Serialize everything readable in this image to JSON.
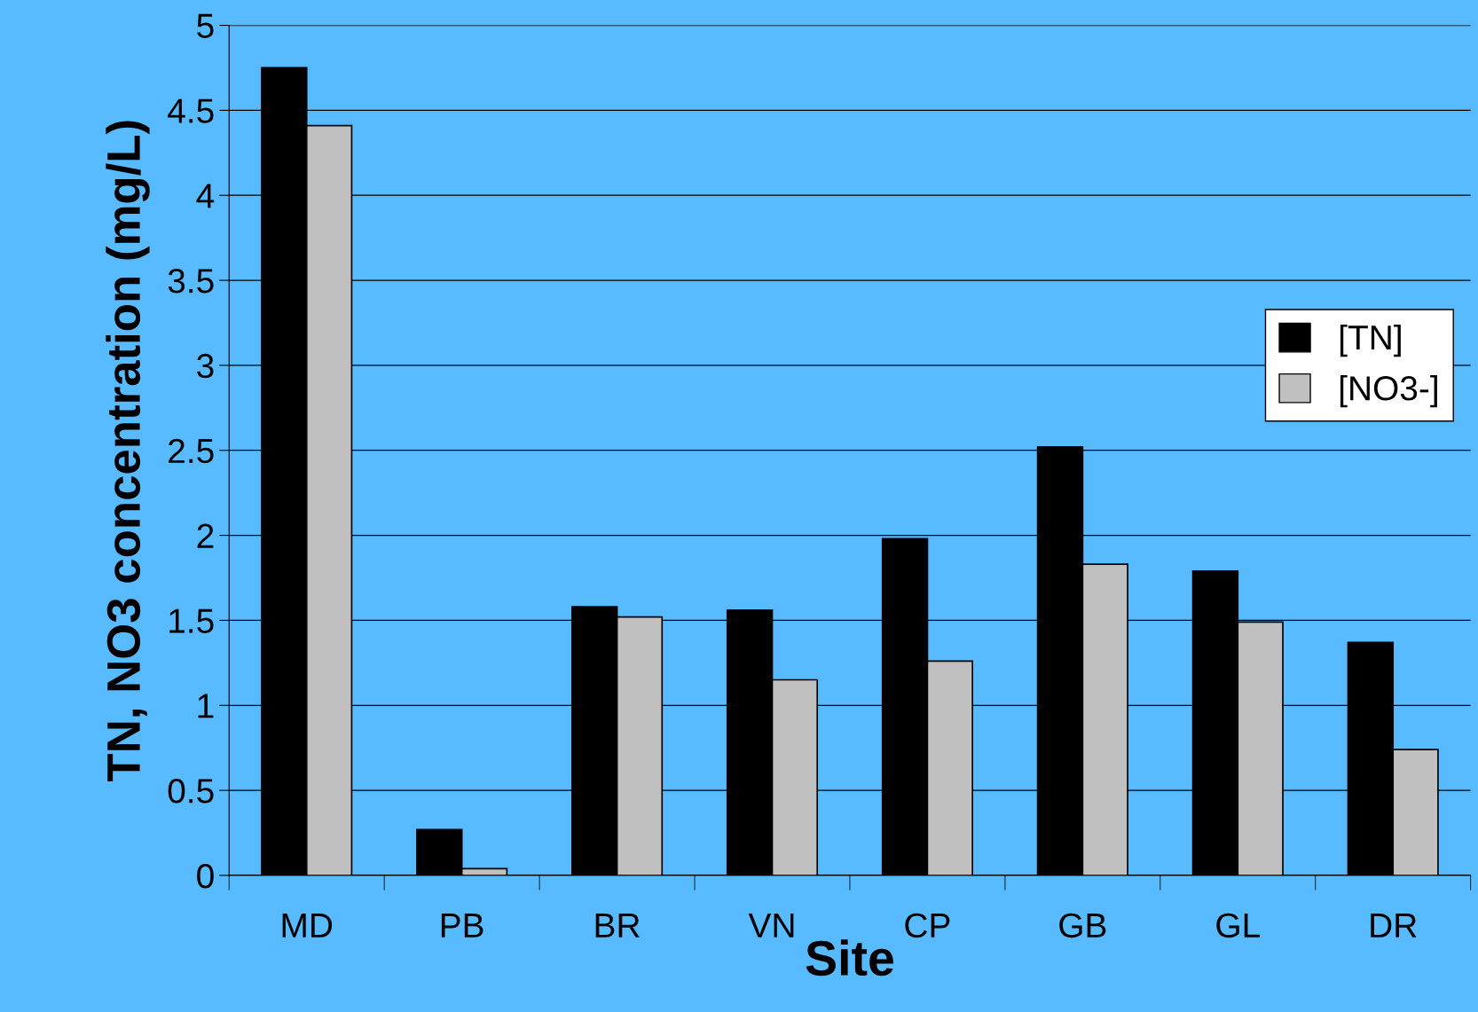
{
  "chart_data": {
    "type": "bar",
    "xlabel": "Site",
    "ylabel": "TN, NO3 concentration (mg/L)",
    "categories": [
      "MD",
      "PB",
      "BR",
      "VN",
      "CP",
      "GB",
      "GL",
      "DR"
    ],
    "series": [
      {
        "name": "[TN]",
        "color": "#000000",
        "values": [
          4.75,
          0.27,
          1.58,
          1.56,
          1.98,
          2.52,
          1.79,
          1.37
        ]
      },
      {
        "name": "[NO3-]",
        "color": "#c0c0c0",
        "values": [
          4.41,
          0.04,
          1.52,
          1.15,
          1.26,
          1.83,
          1.49,
          0.74
        ]
      }
    ],
    "ylim": [
      0,
      5
    ],
    "yticks": [
      0,
      0.5,
      1,
      1.5,
      2,
      2.5,
      3,
      3.5,
      4,
      4.5,
      5
    ],
    "grid": "y",
    "legend": "right"
  }
}
